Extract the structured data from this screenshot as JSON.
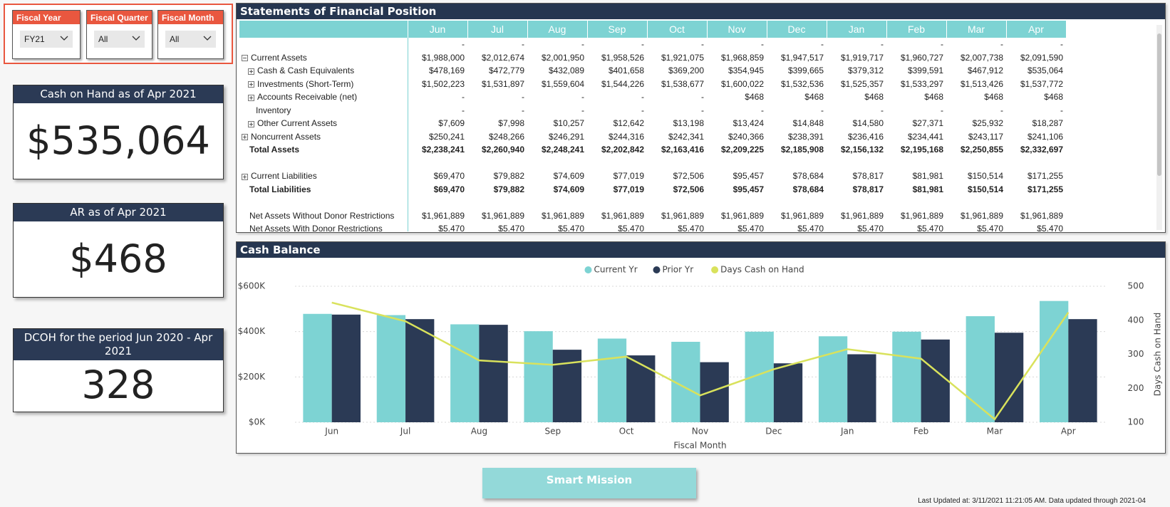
{
  "slicers": [
    {
      "label": "Fiscal Year",
      "value": "FY21"
    },
    {
      "label": "Fiscal Quarter",
      "value": "All"
    },
    {
      "label": "Fiscal Month",
      "value": "All"
    }
  ],
  "cards": [
    {
      "title": "Cash on Hand as of Apr 2021",
      "value": "$535,064"
    },
    {
      "title": "AR as of Apr 2021",
      "value": "$468"
    },
    {
      "title": "DCOH for the period Jun 2020 - Apr 2021",
      "value": "328"
    }
  ],
  "table": {
    "title": "Statements of Financial Position",
    "columns": [
      "Jun",
      "Jul",
      "Aug",
      "Sep",
      "Oct",
      "Nov",
      "Dec",
      "Jan",
      "Feb",
      "Mar",
      "Apr"
    ],
    "rows": [
      {
        "cells": [
          "-",
          "-",
          "-",
          "-",
          "-",
          "-",
          "-",
          "-",
          "-",
          "-",
          "-"
        ]
      },
      {
        "label": "Current Assets",
        "toggle": "expanded",
        "cells": [
          "$1,988,000",
          "$2,012,674",
          "$2,001,950",
          "$1,958,526",
          "$1,921,075",
          "$1,968,859",
          "$1,947,517",
          "$1,919,717",
          "$1,960,727",
          "$2,007,738",
          "$2,091,590"
        ]
      },
      {
        "label": "Cash & Cash Equivalents",
        "indent": 1,
        "toggle": "collapsed",
        "cells": [
          "$478,169",
          "$472,779",
          "$432,089",
          "$401,658",
          "$369,200",
          "$354,945",
          "$399,665",
          "$379,312",
          "$399,591",
          "$467,912",
          "$535,064"
        ]
      },
      {
        "label": "Investments (Short-Term)",
        "indent": 1,
        "toggle": "collapsed",
        "cells": [
          "$1,502,223",
          "$1,531,897",
          "$1,559,604",
          "$1,544,226",
          "$1,538,677",
          "$1,600,022",
          "$1,532,536",
          "$1,525,357",
          "$1,533,297",
          "$1,513,426",
          "$1,537,772"
        ]
      },
      {
        "label": "Accounts Receivable (net)",
        "indent": 1,
        "toggle": "collapsed",
        "cells": [
          "-",
          "-",
          "-",
          "-",
          "-",
          "$468",
          "$468",
          "$468",
          "$468",
          "$468",
          "$468"
        ]
      },
      {
        "label": "Inventory",
        "indent": 1,
        "cells": [
          "-",
          "-",
          "-",
          "-",
          "-",
          "-",
          "-",
          "-",
          "-",
          "-",
          "-"
        ]
      },
      {
        "label": "Other Current Assets",
        "indent": 1,
        "toggle": "collapsed",
        "cells": [
          "$7,609",
          "$7,998",
          "$10,257",
          "$12,642",
          "$13,198",
          "$13,424",
          "$14,848",
          "$14,580",
          "$27,371",
          "$25,932",
          "$18,287"
        ]
      },
      {
        "label": "Noncurrent Assets",
        "toggle": "collapsed",
        "cells": [
          "$250,241",
          "$248,266",
          "$246,291",
          "$244,316",
          "$242,341",
          "$240,366",
          "$238,391",
          "$236,416",
          "$234,441",
          "$243,117",
          "$241,106"
        ]
      },
      {
        "label": "Total Assets",
        "bold": true,
        "cells": [
          "$2,238,241",
          "$2,260,940",
          "$2,248,241",
          "$2,202,842",
          "$2,163,416",
          "$2,209,225",
          "$2,185,908",
          "$2,156,132",
          "$2,195,168",
          "$2,250,855",
          "$2,332,697"
        ]
      },
      {
        "label": "Current Liabilities",
        "toggle": "collapsed",
        "cells": [
          "$69,470",
          "$79,882",
          "$74,609",
          "$77,019",
          "$72,506",
          "$95,457",
          "$78,684",
          "$78,817",
          "$81,981",
          "$150,514",
          "$171,255"
        ]
      },
      {
        "label": "Total Liabilities",
        "bold": true,
        "cells": [
          "$69,470",
          "$79,882",
          "$74,609",
          "$77,019",
          "$72,506",
          "$95,457",
          "$78,684",
          "$78,817",
          "$81,981",
          "$150,514",
          "$171,255"
        ]
      },
      {
        "label": "Net Assets Without Donor Restrictions",
        "cells": [
          "$1,961,889",
          "$1,961,889",
          "$1,961,889",
          "$1,961,889",
          "$1,961,889",
          "$1,961,889",
          "$1,961,889",
          "$1,961,889",
          "$1,961,889",
          "$1,961,889",
          "$1,961,889"
        ]
      },
      {
        "label": "Net Assets With Donor Restrictions",
        "cells": [
          "$5,470",
          "$5,470",
          "$5,470",
          "$5,470",
          "$5,470",
          "$5,470",
          "$5,470",
          "$5,470",
          "$5,470",
          "$5,470",
          "$5,470"
        ]
      }
    ]
  },
  "chart_data": {
    "type": "combo",
    "title": "Cash Balance",
    "x_label": "Fiscal Month",
    "y2_label": "Days Cash on Hand",
    "categories": [
      "Jun",
      "Jul",
      "Aug",
      "Sep",
      "Oct",
      "Nov",
      "Dec",
      "Jan",
      "Feb",
      "Mar",
      "Apr"
    ],
    "series": [
      {
        "name": "Current Yr",
        "type": "bar",
        "color": "#7dd3d3",
        "values": [
          478169,
          472779,
          432089,
          401658,
          369200,
          354945,
          399665,
          379312,
          399591,
          467912,
          535064
        ]
      },
      {
        "name": "Prior Yr",
        "type": "bar",
        "color": "#2b3a55",
        "values": [
          475000,
          455000,
          430000,
          320000,
          295000,
          265000,
          260000,
          300000,
          365000,
          395000,
          455000
        ]
      },
      {
        "name": "Days Cash on Hand",
        "type": "line",
        "axis": "y2",
        "color": "#d9e25c",
        "values": [
          452,
          397,
          282,
          269,
          293,
          179,
          256,
          315,
          287,
          109,
          423
        ]
      }
    ],
    "ylim": [
      0,
      600000
    ],
    "yticks": [
      {
        "value": 0,
        "label": "$0K"
      },
      {
        "value": 200000,
        "label": "$200K"
      },
      {
        "value": 400000,
        "label": "$400K"
      },
      {
        "value": 600000,
        "label": "$600K"
      }
    ],
    "y2lim": [
      100,
      500
    ],
    "y2ticks": [
      100,
      200,
      300,
      400,
      500
    ],
    "grid": true,
    "legend": "top"
  },
  "button": "Smart Mission",
  "footer": "Last Updated at: 3/11/2021 11:21:05 AM. Data updated through 2021-04"
}
